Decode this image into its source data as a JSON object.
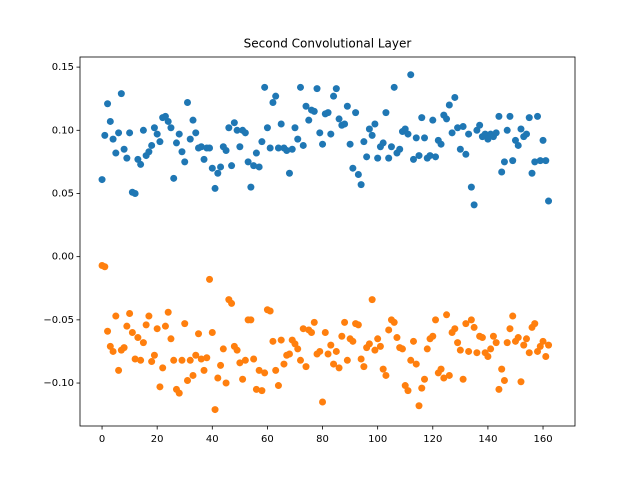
{
  "chart_data": {
    "type": "scatter",
    "title": "Second Convolutional Layer",
    "x": [
      0,
      1,
      2,
      3,
      4,
      5,
      6,
      7,
      8,
      9,
      10,
      11,
      12,
      13,
      14,
      15,
      16,
      17,
      18,
      19,
      20,
      21,
      22,
      23,
      24,
      25,
      26,
      27,
      28,
      29,
      30,
      31,
      32,
      33,
      34,
      35,
      36,
      37,
      38,
      39,
      40,
      41,
      42,
      43,
      44,
      45,
      46,
      47,
      48,
      49,
      50,
      51,
      52,
      53,
      54,
      55,
      56,
      57,
      58,
      59,
      60,
      61,
      62,
      63,
      64,
      65,
      66,
      67,
      68,
      69,
      70,
      71,
      72,
      73,
      74,
      75,
      76,
      77,
      78,
      79,
      80,
      81,
      82,
      83,
      84,
      85,
      86,
      87,
      88,
      89,
      90,
      91,
      92,
      93,
      94,
      95,
      96,
      97,
      98,
      99,
      100,
      101,
      102,
      103,
      104,
      105,
      106,
      107,
      108,
      109,
      110,
      111,
      112,
      113,
      114,
      115,
      116,
      117,
      118,
      119,
      120,
      121,
      122,
      123,
      124,
      125,
      126,
      127,
      128,
      129,
      130,
      131,
      132,
      133,
      134,
      135,
      136,
      137,
      138,
      139,
      140,
      141,
      142,
      143,
      144,
      145,
      146,
      147,
      148,
      149,
      150,
      151,
      152,
      153,
      154,
      155,
      156,
      157,
      158,
      159,
      160,
      161,
      162
    ],
    "series": [
      {
        "color": "#1f77b4",
        "values": [
          0.061,
          0.096,
          0.121,
          0.107,
          0.093,
          0.082,
          0.098,
          0.129,
          0.085,
          0.078,
          0.098,
          0.051,
          0.05,
          0.077,
          0.073,
          0.1,
          0.08,
          0.083,
          0.088,
          0.102,
          0.097,
          0.091,
          0.11,
          0.111,
          0.107,
          0.102,
          0.062,
          0.09,
          0.097,
          0.083,
          0.075,
          0.122,
          0.093,
          0.108,
          0.098,
          0.086,
          0.087,
          0.077,
          0.086,
          0.086,
          0.07,
          0.054,
          0.066,
          0.071,
          0.087,
          0.084,
          0.102,
          0.072,
          0.106,
          0.1,
          0.087,
          0.1,
          0.098,
          0.075,
          0.055,
          0.072,
          0.082,
          0.071,
          0.091,
          0.134,
          0.102,
          0.086,
          0.122,
          0.127,
          0.086,
          0.105,
          0.086,
          0.084,
          0.066,
          0.085,
          0.102,
          0.093,
          0.134,
          0.088,
          0.119,
          0.108,
          0.116,
          0.115,
          0.133,
          0.098,
          0.089,
          0.113,
          0.114,
          0.097,
          0.127,
          0.133,
          0.109,
          0.104,
          0.105,
          0.119,
          0.089,
          0.07,
          0.114,
          0.065,
          0.057,
          0.091,
          0.079,
          0.101,
          0.096,
          0.105,
          0.078,
          0.087,
          0.09,
          0.114,
          0.078,
          0.087,
          0.134,
          0.082,
          0.085,
          0.099,
          0.101,
          0.097,
          0.144,
          0.077,
          0.094,
          0.08,
          0.11,
          0.094,
          0.078,
          0.08,
          0.108,
          0.079,
          0.092,
          0.089,
          0.112,
          0.109,
          0.12,
          0.098,
          0.126,
          0.102,
          0.085,
          0.103,
          0.081,
          0.097,
          0.055,
          0.041,
          0.1,
          0.104,
          0.095,
          0.097,
          0.093,
          0.097,
          0.095,
          0.098,
          0.111,
          0.067,
          0.075,
          0.1,
          0.111,
          0.076,
          0.092,
          0.088,
          0.101,
          0.095,
          0.097,
          0.11,
          0.066,
          0.075,
          0.111,
          0.076,
          0.092,
          0.076,
          0.044
        ]
      },
      {
        "color": "#ff7f0e",
        "values": [
          -0.007,
          -0.008,
          -0.059,
          -0.071,
          -0.075,
          -0.047,
          -0.09,
          -0.074,
          -0.072,
          -0.055,
          -0.045,
          -0.06,
          -0.081,
          -0.064,
          -0.082,
          -0.068,
          -0.054,
          -0.047,
          -0.083,
          -0.078,
          -0.057,
          -0.103,
          -0.088,
          -0.055,
          -0.044,
          -0.065,
          -0.082,
          -0.105,
          -0.108,
          -0.082,
          -0.053,
          -0.098,
          -0.082,
          -0.094,
          -0.078,
          -0.061,
          -0.081,
          -0.09,
          -0.08,
          -0.018,
          -0.06,
          -0.121,
          -0.096,
          -0.086,
          -0.073,
          -0.1,
          -0.034,
          -0.037,
          -0.071,
          -0.074,
          -0.084,
          -0.097,
          -0.082,
          -0.05,
          -0.05,
          -0.081,
          -0.105,
          -0.09,
          -0.106,
          -0.092,
          -0.042,
          -0.043,
          -0.067,
          -0.09,
          -0.102,
          -0.066,
          -0.085,
          -0.078,
          -0.077,
          -0.066,
          -0.069,
          -0.073,
          -0.082,
          -0.057,
          -0.087,
          -0.058,
          -0.06,
          -0.052,
          -0.077,
          -0.075,
          -0.115,
          -0.06,
          -0.077,
          -0.07,
          -0.085,
          -0.075,
          -0.088,
          -0.063,
          -0.052,
          -0.082,
          -0.065,
          -0.067,
          -0.053,
          -0.054,
          -0.081,
          -0.087,
          -0.072,
          -0.069,
          -0.034,
          -0.074,
          -0.065,
          -0.071,
          -0.089,
          -0.094,
          -0.058,
          -0.05,
          -0.052,
          -0.064,
          -0.072,
          -0.073,
          -0.102,
          -0.106,
          -0.082,
          -0.067,
          -0.085,
          -0.118,
          -0.104,
          -0.097,
          -0.073,
          -0.065,
          -0.063,
          -0.05,
          -0.092,
          -0.089,
          -0.096,
          -0.046,
          -0.094,
          -0.06,
          -0.057,
          -0.068,
          -0.074,
          -0.097,
          -0.053,
          -0.075,
          -0.05,
          -0.056,
          -0.076,
          -0.063,
          -0.064,
          -0.076,
          -0.079,
          -0.073,
          -0.063,
          -0.068,
          -0.105,
          -0.089,
          -0.098,
          -0.068,
          -0.057,
          -0.047,
          -0.067,
          -0.064,
          -0.099,
          -0.07,
          -0.065,
          -0.076,
          -0.056,
          -0.053,
          -0.075,
          -0.071,
          -0.067,
          -0.079,
          -0.07
        ]
      }
    ],
    "xlim": [
      -8,
      171.6
    ],
    "ylim": [
      -0.134,
      0.158
    ],
    "xticks": [
      0,
      20,
      40,
      60,
      80,
      100,
      120,
      140,
      160
    ],
    "yticks": [
      0.15,
      {
        "value": 0.1,
        "label": "0.10"
      },
      0.05,
      {
        "value": 0,
        "label": "0.00"
      },
      {
        "value": -0.05,
        "label": "−0.05"
      },
      {
        "value": -0.1,
        "label": "−0.10"
      }
    ]
  }
}
